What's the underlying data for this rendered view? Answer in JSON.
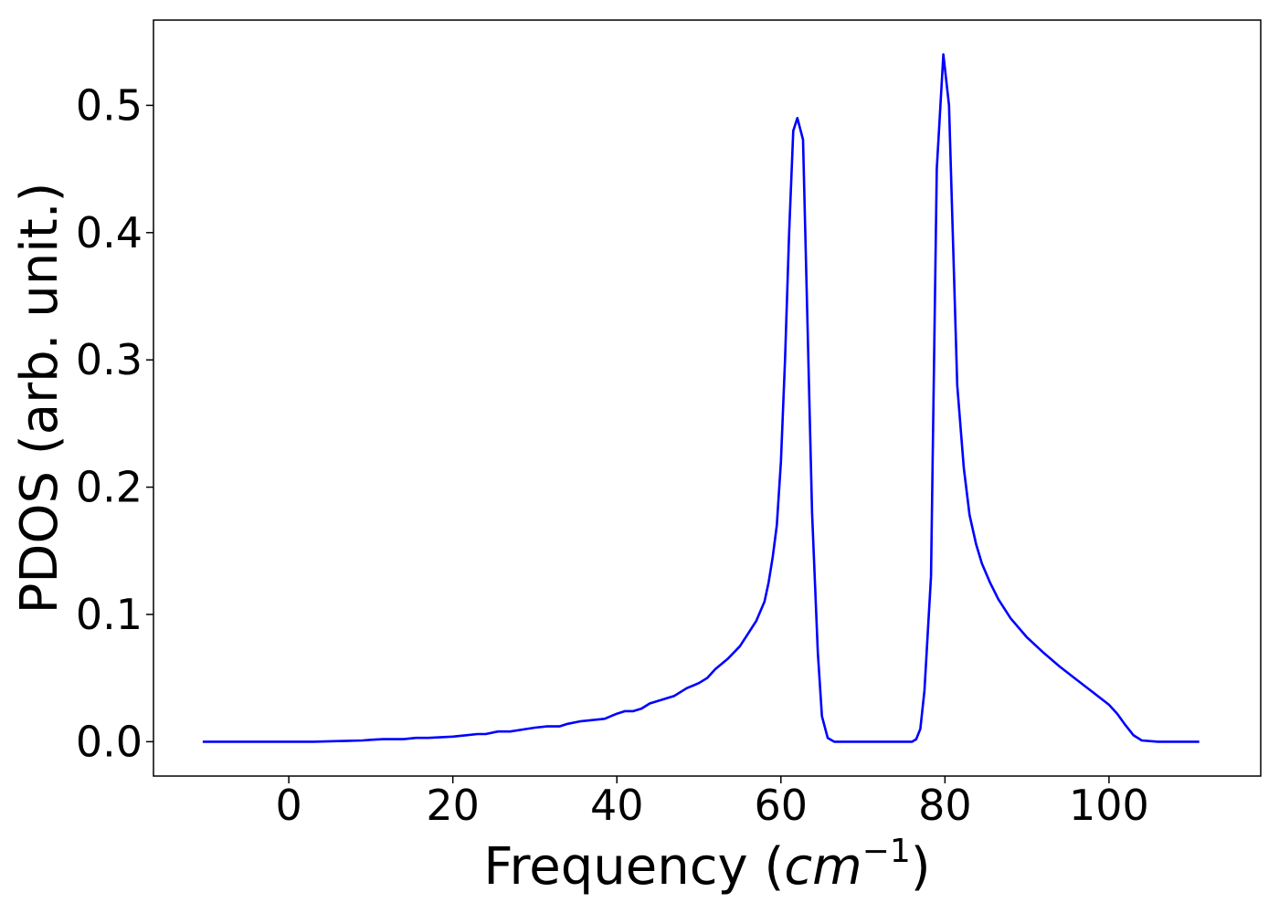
{
  "chart_data": {
    "type": "line",
    "title": "",
    "xlabel": {
      "text": "Frequency (",
      "unit": "cm",
      "exponent": "−1",
      "close": ")"
    },
    "ylabel": "PDOS (arb. unit.)",
    "xlim": [
      -16.5,
      118.5
    ],
    "ylim": [
      -0.027,
      0.567
    ],
    "xticks": [
      0,
      20,
      40,
      60,
      80,
      100
    ],
    "xtick_labels": [
      "0",
      "20",
      "40",
      "60",
      "80",
      "100"
    ],
    "yticks": [
      0.0,
      0.1,
      0.2,
      0.3,
      0.4,
      0.5
    ],
    "ytick_labels": [
      "0.0",
      "0.1",
      "0.2",
      "0.3",
      "0.4",
      "0.5"
    ],
    "grid": false,
    "legend": "none",
    "series": [
      {
        "color": "#0000ff",
        "x": [
          -10.5,
          -5,
          0,
          3,
          6,
          9,
          10,
          11.5,
          12.5,
          14,
          15.5,
          17,
          20,
          21.5,
          23,
          24,
          25.5,
          27,
          29,
          30,
          31.5,
          33,
          34,
          35.5,
          37,
          38.5,
          40,
          41,
          42,
          43,
          44,
          45.5,
          47,
          48.5,
          50,
          51,
          52,
          53.5,
          55,
          56,
          57,
          58,
          58.5,
          59,
          59.5,
          60,
          60.5,
          61,
          61.5,
          62,
          62.7,
          63.2,
          63.8,
          64.5,
          65,
          65.7,
          66.5,
          70,
          75,
          76,
          76.5,
          77,
          77.5,
          78.3,
          79,
          79.8,
          80.5,
          81.5,
          82.3,
          83,
          83.8,
          84.5,
          85.5,
          86.5,
          88,
          90,
          92,
          94,
          96,
          98,
          100,
          101,
          102,
          103,
          104,
          106,
          111
        ],
        "y": [
          0.0,
          0.0,
          0.0,
          0.0,
          0.0005,
          0.001,
          0.0015,
          0.002,
          0.002,
          0.002,
          0.003,
          0.003,
          0.004,
          0.005,
          0.006,
          0.006,
          0.008,
          0.008,
          0.01,
          0.011,
          0.012,
          0.012,
          0.014,
          0.016,
          0.017,
          0.018,
          0.022,
          0.024,
          0.024,
          0.026,
          0.03,
          0.033,
          0.036,
          0.042,
          0.046,
          0.05,
          0.057,
          0.065,
          0.075,
          0.085,
          0.095,
          0.11,
          0.125,
          0.145,
          0.17,
          0.22,
          0.3,
          0.4,
          0.48,
          0.49,
          0.473,
          0.34,
          0.18,
          0.07,
          0.02,
          0.003,
          0.0,
          0.0,
          0.0,
          0.0,
          0.002,
          0.01,
          0.04,
          0.13,
          0.45,
          0.54,
          0.5,
          0.28,
          0.215,
          0.178,
          0.155,
          0.14,
          0.125,
          0.112,
          0.097,
          0.082,
          0.07,
          0.059,
          0.049,
          0.039,
          0.029,
          0.022,
          0.013,
          0.005,
          0.001,
          0.0,
          0.0
        ]
      }
    ]
  }
}
